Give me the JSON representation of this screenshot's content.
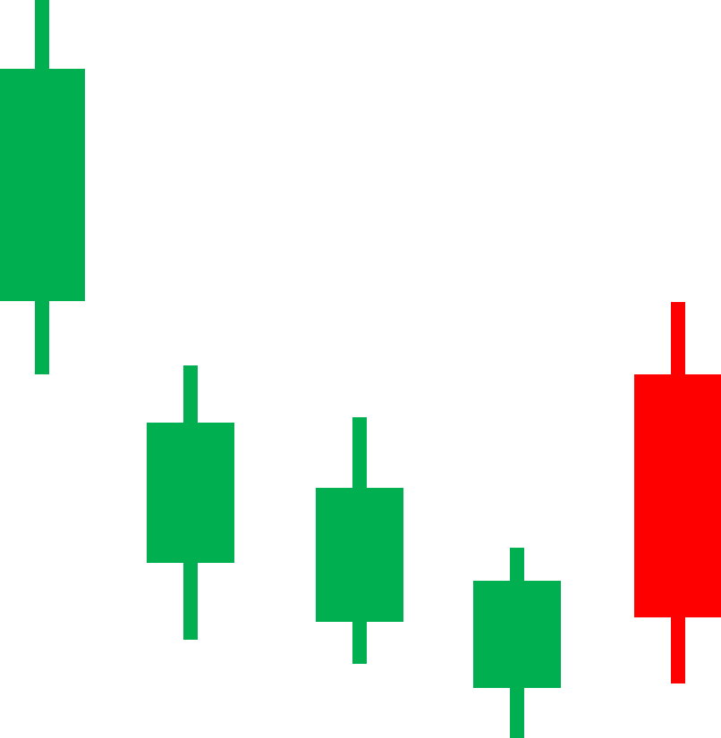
{
  "chart_data": {
    "type": "candlestick",
    "title": "",
    "xlabel": "",
    "ylabel": "",
    "grid": false,
    "legend": "none",
    "ylim": [
      0,
      826
    ],
    "colors": {
      "up": "#00b050",
      "down": "#ff0000"
    },
    "candles": [
      {
        "open": 489,
        "high": 826,
        "low": 407,
        "close": 749,
        "direction": "up"
      },
      {
        "open": 196,
        "high": 417,
        "low": 110,
        "close": 353,
        "direction": "up"
      },
      {
        "open": 130,
        "high": 359,
        "low": 83,
        "close": 280,
        "direction": "up"
      },
      {
        "open": 56,
        "high": 213,
        "low": 0,
        "close": 176,
        "direction": "up"
      },
      {
        "open": 407,
        "high": 488,
        "low": 61,
        "close": 135,
        "direction": "down"
      }
    ]
  }
}
